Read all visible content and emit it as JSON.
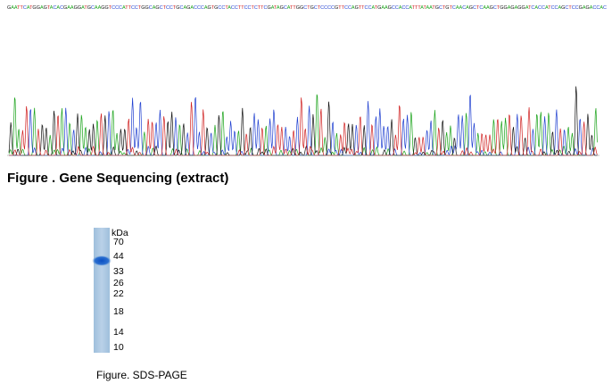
{
  "sequence": {
    "text": "GAATTCATGGAGTACACGAAGGATGCAAGGTCCCATTCCTGGCAGCTCCTGCAGACCCAGTGCCTACCTTCCTCTTCGATAGCATTGGCTGCTCCCCGTTCCAGTTCCATGAAGCCACCATTTATAATGCTGTCAACAGCTCAAGCTGGAGAGGATCACCATCCAGCTCCGAGACCAC"
  },
  "figure1": {
    "caption": "Figure . Gene Sequencing (extract)"
  },
  "gel": {
    "unit": "kDa",
    "markers": [
      70,
      44,
      33,
      26,
      22,
      18,
      14,
      10
    ]
  },
  "figure2": {
    "caption": "Figure. SDS-PAGE"
  }
}
